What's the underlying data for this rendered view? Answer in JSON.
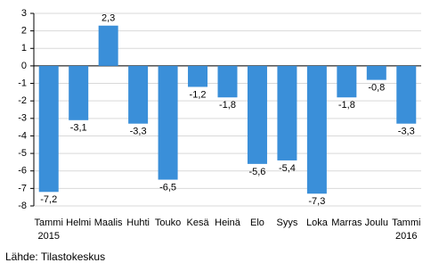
{
  "chart_data": {
    "type": "bar",
    "categories": [
      "Tammi 2015",
      "Helmi",
      "Maalis",
      "Huhti",
      "Touko",
      "Kesä",
      "Heinä",
      "Elo",
      "Syys",
      "Loka",
      "Marras",
      "Joulu",
      "Tammi 2016"
    ],
    "values": [
      -7.2,
      -3.1,
      2.3,
      -3.3,
      -6.5,
      -1.2,
      -1.8,
      -5.6,
      -5.4,
      -7.3,
      -1.8,
      -0.8,
      -3.3
    ],
    "value_labels": [
      "-7,2",
      "-3,1",
      "2,3",
      "-3,3",
      "-6,5",
      "-1,2",
      "-1,8",
      "-5,6",
      "-5,4",
      "-7,3",
      "-1,8",
      "-0,8",
      "-3,3"
    ],
    "color": "#3a8fd9",
    "ylim": [
      -8,
      3
    ],
    "yticks": [
      3,
      2,
      1,
      0,
      -1,
      -2,
      -3,
      -4,
      -5,
      -6,
      -7,
      -8
    ],
    "grid": true,
    "source": "Lähde: Tilastokeskus"
  }
}
